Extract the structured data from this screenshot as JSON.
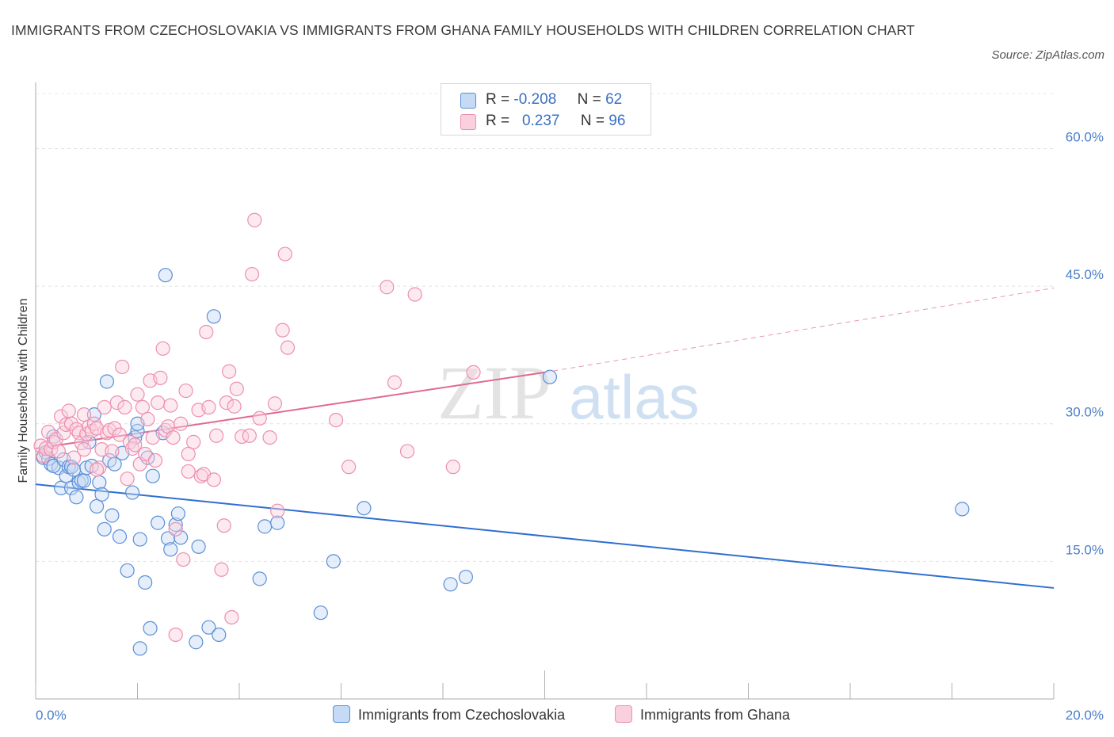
{
  "title": "IMMIGRANTS FROM CZECHOSLOVAKIA VS IMMIGRANTS FROM GHANA FAMILY HOUSEHOLDS WITH CHILDREN CORRELATION CHART",
  "source": "Source: ZipAtlas.com",
  "watermark": {
    "zip": "ZIP",
    "atlas": "atlas"
  },
  "colors": {
    "blue": "#5b8fd6",
    "blue_line": "#2f6fd0",
    "pink": "#ec8fae",
    "pink_line": "#e06a90",
    "axis_text": "#4a7ec9"
  },
  "legend": {
    "rows": [
      {
        "r_label": "R =",
        "r_value": "-0.208",
        "n_label": "N =",
        "n_value": "62"
      },
      {
        "r_label": "R =",
        "r_value": "0.237",
        "n_label": "N =",
        "n_value": "96"
      }
    ]
  },
  "chart_data": {
    "type": "scatter",
    "title": "IMMIGRANTS FROM CZECHOSLOVAKIA VS IMMIGRANTS FROM GHANA FAMILY HOUSEHOLDS WITH CHILDREN CORRELATION CHART",
    "xlabel": "",
    "ylabel": "Family Households with Children",
    "xlim": [
      0,
      20
    ],
    "ylim": [
      0,
      60
    ],
    "x_ticks": [
      "0.0%",
      "20.0%"
    ],
    "y_ticks": [
      {
        "value": 15,
        "label": "15.0%"
      },
      {
        "value": 30,
        "label": "30.0%"
      },
      {
        "value": 45,
        "label": "45.0%"
      },
      {
        "value": 60,
        "label": "60.0%"
      }
    ],
    "grid": true,
    "legend_position": "top-center",
    "series": [
      {
        "name": "Immigrants from Czechoslovakia",
        "color": "#5b8fd6",
        "r": -0.208,
        "n": 62,
        "trend": {
          "x0": 0,
          "y0": 23.4,
          "x1": 20,
          "y1": 12.1
        },
        "points": [
          [
            0.15,
            26.3
          ],
          [
            0.2,
            26.9
          ],
          [
            0.25,
            26.2
          ],
          [
            0.3,
            25.6
          ],
          [
            0.35,
            28.6
          ],
          [
            0.45,
            25.2
          ],
          [
            0.35,
            25.4
          ],
          [
            0.5,
            23.0
          ],
          [
            0.55,
            26.1
          ],
          [
            0.6,
            24.3
          ],
          [
            0.65,
            25.3
          ],
          [
            0.7,
            23.0
          ],
          [
            0.7,
            25.3
          ],
          [
            0.75,
            25.0
          ],
          [
            0.8,
            22.0
          ],
          [
            0.85,
            23.6
          ],
          [
            0.9,
            23.8
          ],
          [
            0.95,
            23.8
          ],
          [
            1.0,
            25.2
          ],
          [
            1.05,
            28.0
          ],
          [
            1.1,
            25.4
          ],
          [
            1.15,
            31.0
          ],
          [
            1.2,
            21.0
          ],
          [
            1.25,
            23.6
          ],
          [
            1.3,
            22.3
          ],
          [
            1.35,
            18.5
          ],
          [
            1.4,
            34.6
          ],
          [
            1.45,
            26.0
          ],
          [
            1.5,
            20.0
          ],
          [
            1.55,
            25.6
          ],
          [
            1.65,
            17.7
          ],
          [
            1.7,
            26.8
          ],
          [
            1.8,
            14.0
          ],
          [
            1.9,
            22.5
          ],
          [
            1.95,
            28.5
          ],
          [
            2.0,
            29.2
          ],
          [
            2.0,
            30.0
          ],
          [
            2.05,
            17.4
          ],
          [
            2.15,
            12.7
          ],
          [
            2.2,
            26.3
          ],
          [
            2.25,
            7.7
          ],
          [
            2.3,
            24.3
          ],
          [
            2.4,
            19.2
          ],
          [
            2.5,
            29.0
          ],
          [
            2.55,
            46.2
          ],
          [
            2.6,
            17.5
          ],
          [
            2.65,
            16.3
          ],
          [
            2.75,
            19.0
          ],
          [
            2.8,
            20.2
          ],
          [
            2.85,
            17.6
          ],
          [
            3.2,
            16.6
          ],
          [
            3.4,
            7.8
          ],
          [
            3.5,
            41.7
          ],
          [
            3.6,
            7.0
          ],
          [
            3.15,
            6.2
          ],
          [
            2.05,
            5.5
          ],
          [
            4.4,
            13.1
          ],
          [
            4.5,
            18.8
          ],
          [
            4.75,
            19.2
          ],
          [
            5.6,
            9.4
          ],
          [
            5.85,
            15.0
          ],
          [
            6.45,
            20.8
          ],
          [
            8.15,
            12.5
          ],
          [
            8.45,
            13.3
          ],
          [
            10.1,
            35.1
          ],
          [
            18.2,
            20.7
          ]
        ]
      },
      {
        "name": "Immigrants from Ghana",
        "color": "#ec8fae",
        "r": 0.237,
        "n": 96,
        "trend": {
          "x0": 0,
          "y0": 27.3,
          "x1": 10.0,
          "y1": 35.6,
          "dash_x1": 20,
          "dash_y1": 44.8
        },
        "points": [
          [
            0.1,
            27.6
          ],
          [
            0.15,
            26.5
          ],
          [
            0.2,
            27.3
          ],
          [
            0.25,
            29.1
          ],
          [
            0.3,
            27.2
          ],
          [
            0.35,
            28.0
          ],
          [
            0.4,
            28.3
          ],
          [
            0.45,
            27.0
          ],
          [
            0.5,
            30.8
          ],
          [
            0.55,
            29.0
          ],
          [
            0.6,
            29.9
          ],
          [
            0.65,
            31.4
          ],
          [
            0.7,
            30.0
          ],
          [
            0.75,
            26.3
          ],
          [
            0.8,
            29.4
          ],
          [
            0.85,
            29.0
          ],
          [
            0.9,
            27.9
          ],
          [
            0.95,
            27.2
          ],
          [
            1.0,
            28.9
          ],
          [
            1.05,
            29.7
          ],
          [
            1.1,
            29.2
          ],
          [
            1.15,
            30.0
          ],
          [
            1.2,
            29.5
          ],
          [
            1.25,
            25.2
          ],
          [
            1.3,
            27.2
          ],
          [
            1.35,
            31.8
          ],
          [
            1.4,
            29.0
          ],
          [
            1.45,
            29.3
          ],
          [
            1.5,
            27.0
          ],
          [
            1.55,
            29.5
          ],
          [
            1.6,
            32.3
          ],
          [
            1.65,
            28.8
          ],
          [
            1.7,
            36.2
          ],
          [
            1.75,
            31.8
          ],
          [
            1.8,
            24.0
          ],
          [
            1.85,
            28.0
          ],
          [
            1.9,
            27.3
          ],
          [
            1.95,
            27.7
          ],
          [
            2.0,
            33.2
          ],
          [
            2.05,
            25.6
          ],
          [
            2.1,
            31.8
          ],
          [
            2.15,
            26.7
          ],
          [
            2.2,
            30.5
          ],
          [
            2.25,
            34.7
          ],
          [
            2.3,
            28.5
          ],
          [
            2.35,
            26.0
          ],
          [
            2.4,
            32.3
          ],
          [
            2.45,
            35.0
          ],
          [
            2.5,
            38.2
          ],
          [
            2.55,
            29.3
          ],
          [
            2.6,
            29.7
          ],
          [
            2.65,
            32.0
          ],
          [
            2.7,
            28.5
          ],
          [
            2.75,
            18.5
          ],
          [
            2.85,
            30.0
          ],
          [
            2.9,
            15.2
          ],
          [
            2.95,
            33.6
          ],
          [
            3.0,
            24.8
          ],
          [
            3.1,
            28.0
          ],
          [
            3.2,
            31.5
          ],
          [
            3.25,
            24.3
          ],
          [
            3.3,
            24.5
          ],
          [
            3.35,
            40.0
          ],
          [
            3.4,
            31.8
          ],
          [
            3.5,
            23.9
          ],
          [
            3.55,
            28.7
          ],
          [
            3.65,
            14.1
          ],
          [
            3.7,
            18.9
          ],
          [
            3.75,
            32.3
          ],
          [
            3.8,
            35.7
          ],
          [
            3.85,
            8.9
          ],
          [
            3.9,
            31.9
          ],
          [
            3.95,
            33.8
          ],
          [
            4.05,
            28.6
          ],
          [
            4.2,
            28.7
          ],
          [
            4.25,
            46.3
          ],
          [
            4.3,
            52.2
          ],
          [
            4.4,
            30.6
          ],
          [
            4.6,
            28.5
          ],
          [
            4.7,
            32.2
          ],
          [
            4.75,
            20.5
          ],
          [
            4.85,
            40.2
          ],
          [
            4.9,
            48.5
          ],
          [
            4.95,
            38.3
          ],
          [
            5.9,
            30.4
          ],
          [
            6.15,
            25.3
          ],
          [
            6.9,
            44.9
          ],
          [
            7.05,
            34.5
          ],
          [
            7.3,
            27.0
          ],
          [
            7.45,
            44.1
          ],
          [
            8.2,
            25.3
          ],
          [
            8.6,
            35.6
          ],
          [
            2.75,
            7.0
          ],
          [
            1.2,
            25.0
          ],
          [
            0.95,
            31.0
          ],
          [
            3.0,
            26.7
          ]
        ]
      }
    ]
  },
  "bottom_legend": [
    {
      "label": "Immigrants from Czechoslovakia"
    },
    {
      "label": "Immigrants from Ghana"
    }
  ]
}
